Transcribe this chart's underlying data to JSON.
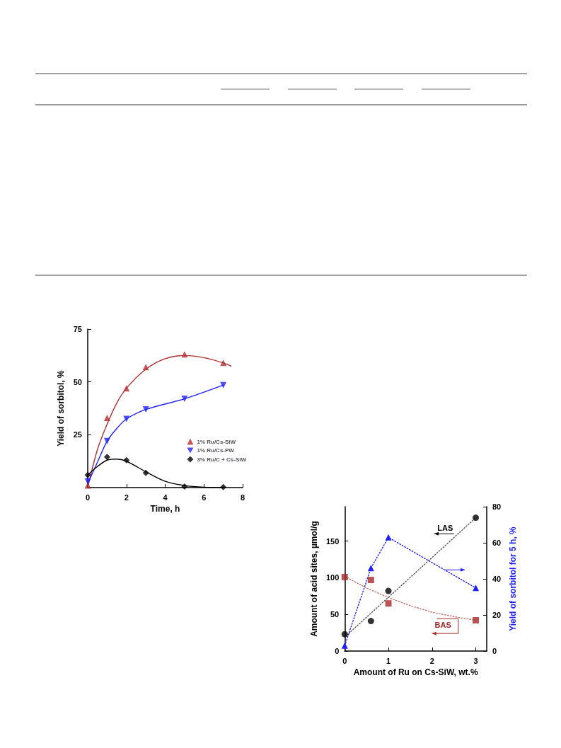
{
  "chart_data": [
    {
      "type": "scatter",
      "xlabel": "Time, h",
      "ylabel": "Yield of sorbitol, %",
      "xlim": [
        0,
        8
      ],
      "xticks": [
        0,
        2,
        4,
        6,
        8
      ],
      "ylim": [
        0,
        75
      ],
      "yticks": [
        {
          "value": 0,
          "label": null
        },
        25,
        50,
        75
      ],
      "grid": false,
      "legend": "right",
      "series": [
        {
          "name": "1% Ru/Cs-SiW",
          "marker": "triangle",
          "color": "#b03030",
          "x": [
            0,
            1,
            2,
            3,
            5,
            7
          ],
          "values": [
            1,
            33,
            47,
            57,
            63,
            59
          ]
        },
        {
          "name": "1% Ru/Cs-PW",
          "marker": "triangle-down",
          "color": "#2020ff",
          "x": [
            0,
            1,
            2,
            3,
            5,
            7
          ],
          "values": [
            3,
            22,
            32.5,
            37,
            42,
            48.5
          ]
        },
        {
          "name": "3% Ru/C + Cs-SiW",
          "marker": "diamond",
          "color": "#000000",
          "x": [
            0,
            1,
            2,
            3,
            5,
            7
          ],
          "values": [
            6,
            14.5,
            13,
            7,
            0.5,
            0.3
          ]
        },
        {
          "type": "line",
          "marker": "none",
          "line_style": "solid",
          "color": "#b03030",
          "x": [
            0,
            0.5,
            1,
            1.5,
            2,
            3,
            4,
            5,
            6,
            7,
            7.4
          ],
          "values": [
            0,
            18,
            30,
            40,
            47,
            56,
            61,
            62.5,
            61.5,
            59,
            57.5
          ]
        },
        {
          "type": "line",
          "marker": "none",
          "line_style": "solid",
          "color": "#2020ff",
          "x": [
            0,
            0.5,
            1,
            1.5,
            2,
            3,
            5,
            7
          ],
          "values": [
            2,
            12,
            22,
            28,
            32.5,
            37,
            42,
            48.5
          ]
        },
        {
          "type": "line",
          "marker": "none",
          "line_style": "solid",
          "color": "#000000",
          "x": [
            0,
            0.5,
            1,
            1.5,
            2,
            3,
            4,
            5,
            6,
            7
          ],
          "values": [
            6,
            10,
            13,
            13.5,
            12.5,
            7.5,
            3,
            1,
            0.2,
            0
          ]
        }
      ]
    },
    {
      "type": "scatter",
      "xlabel": "Amount of Ru on Cs-SiW, wt.%",
      "ylabel": "Amount of acid sites, µmol/g",
      "y2label": "Yield of sorbitol for 5 h, %",
      "xlim": [
        0,
        3.25
      ],
      "xticks": [
        0,
        1,
        2,
        3
      ],
      "ylim": [
        0,
        197
      ],
      "yticks": [
        0,
        50,
        100,
        150
      ],
      "y2lim": [
        0,
        80
      ],
      "y2ticks": [
        0,
        20,
        40,
        60,
        80
      ],
      "grid": false,
      "legend": false,
      "annotations": [
        "LAS",
        "BAS"
      ],
      "series": [
        {
          "marker": "circle",
          "color": "#000000",
          "x": [
            0,
            0.6,
            1,
            3
          ],
          "values": [
            23,
            41,
            82,
            182
          ]
        },
        {
          "marker": "square",
          "color": "#a82828",
          "x": [
            0,
            0.6,
            1,
            3
          ],
          "values": [
            101,
            97,
            65,
            42
          ]
        },
        {
          "type": "line",
          "marker": "triangle",
          "line_style": "dotted",
          "axis": "y2",
          "color": "#2020ff",
          "x": [
            0,
            0.6,
            1,
            3
          ],
          "values": [
            3,
            46,
            63,
            35
          ]
        },
        {
          "type": "line",
          "marker": "none",
          "line_style": "dotted",
          "color": "#555555",
          "x": [
            0,
            3
          ],
          "values": [
            19,
            182
          ]
        },
        {
          "type": "line",
          "marker": "none",
          "line_style": "dotted",
          "color": "#c87070",
          "x": [
            0,
            0.5,
            1,
            1.5,
            2,
            2.5,
            3
          ],
          "values": [
            102,
            86,
            73,
            62,
            53,
            47,
            42
          ]
        }
      ]
    }
  ]
}
